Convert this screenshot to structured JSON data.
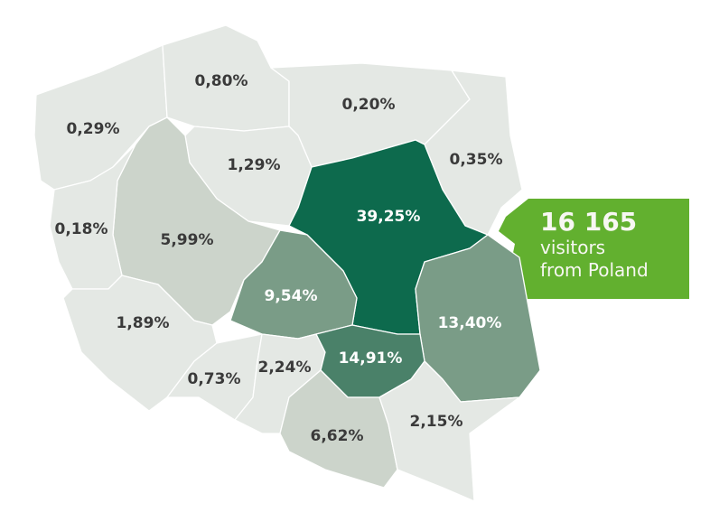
{
  "colors": {
    "level_1": "#e4e8e4",
    "level_2": "#ccd4cb",
    "level_3": "#7a9c87",
    "level_4": "#4a8169",
    "level_5": "#0d6a4d",
    "label_dark": "#3a3a3a",
    "label_light": "#ffffff",
    "callout": "#62b02f"
  },
  "regions": [
    {
      "value": "0,29%",
      "level": 1
    },
    {
      "value": "0,80%",
      "level": 1
    },
    {
      "value": "0,20%",
      "level": 1
    },
    {
      "value": "0,35%",
      "level": 1
    },
    {
      "value": "1,29%",
      "level": 1
    },
    {
      "value": "39,25%",
      "level": 5
    },
    {
      "value": "5,99%",
      "level": 2
    },
    {
      "value": "0,18%",
      "level": 1
    },
    {
      "value": "9,54%",
      "level": 3
    },
    {
      "value": "13,40%",
      "level": 3
    },
    {
      "value": "1,89%",
      "level": 1
    },
    {
      "value": "0,73%",
      "level": 1
    },
    {
      "value": "2,24%",
      "level": 1
    },
    {
      "value": "14,91%",
      "level": 4
    },
    {
      "value": "6,62%",
      "level": 2
    },
    {
      "value": "2,15%",
      "level": 1
    }
  ],
  "callout": {
    "count": "16 165",
    "line1": "visitors",
    "line2": "from Poland"
  }
}
